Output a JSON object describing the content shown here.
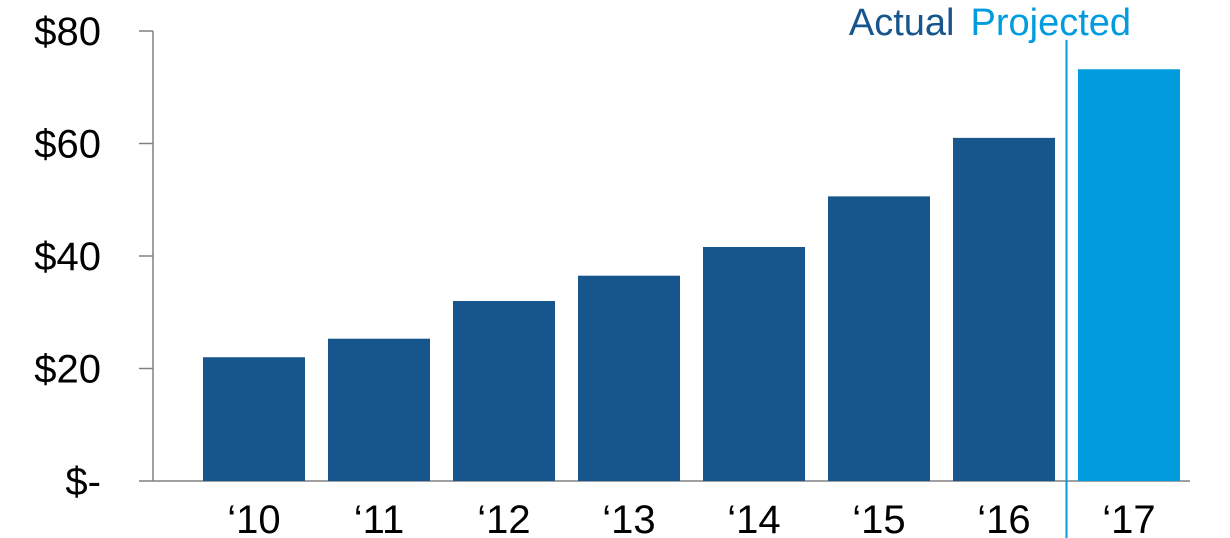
{
  "chart_data": {
    "type": "bar",
    "categories": [
      "‘10",
      "‘11",
      "‘12",
      "‘13",
      "‘14",
      "‘15",
      "‘16",
      "‘17"
    ],
    "values": [
      22,
      25.3,
      32,
      36.5,
      41.6,
      50.6,
      61,
      73.2
    ],
    "bar_kind": [
      "actual",
      "actual",
      "actual",
      "actual",
      "actual",
      "actual",
      "actual",
      "projected"
    ],
    "y_tick_values": [
      0,
      20,
      40,
      60,
      80
    ],
    "y_tick_labels": [
      "$-",
      "$20",
      "$40",
      "$60",
      "$80"
    ],
    "ylim": [
      0,
      80
    ],
    "title": "",
    "xlabel": "",
    "ylabel": "",
    "grid": false,
    "annotations": {
      "actual_label": "Actual",
      "projected_label": "Projected"
    },
    "colors": {
      "actual": "#17568C",
      "projected": "#009CDE",
      "axis": "#808080"
    }
  }
}
